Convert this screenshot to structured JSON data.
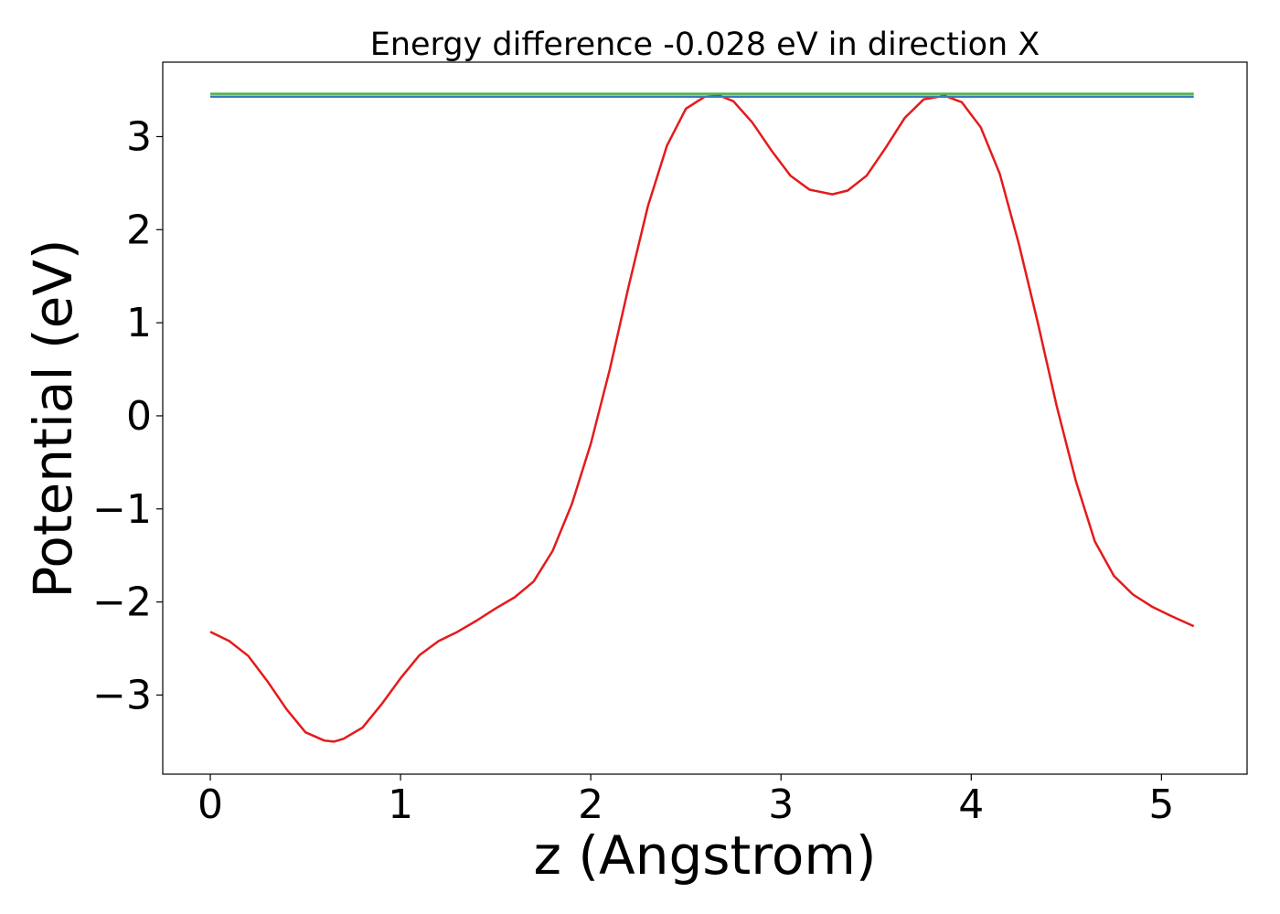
{
  "chart_data": {
    "type": "line",
    "title": "Energy difference -0.028 eV in direction X",
    "xlabel": "z (Angstrom)",
    "ylabel": "Potential (eV)",
    "xlim": [
      -0.25,
      5.45
    ],
    "ylim": [
      -3.85,
      3.8
    ],
    "x_ticks": [
      0,
      1,
      2,
      3,
      4,
      5
    ],
    "y_ticks": [
      -3,
      -2,
      -1,
      0,
      1,
      2,
      3
    ],
    "x_tick_labels": [
      "0",
      "1",
      "2",
      "3",
      "4",
      "5"
    ],
    "y_tick_labels": [
      "−3",
      "−2",
      "−1",
      "0",
      "1",
      "2",
      "3"
    ],
    "grid": false,
    "legend": null,
    "series": [
      {
        "color": "#e41a1c",
        "x": [
          0.0,
          0.1,
          0.2,
          0.3,
          0.4,
          0.5,
          0.6,
          0.65,
          0.7,
          0.8,
          0.9,
          1.0,
          1.1,
          1.2,
          1.3,
          1.4,
          1.5,
          1.6,
          1.7,
          1.8,
          1.9,
          2.0,
          2.1,
          2.2,
          2.3,
          2.4,
          2.5,
          2.6,
          2.68,
          2.75,
          2.85,
          2.95,
          3.05,
          3.15,
          3.27,
          3.35,
          3.45,
          3.55,
          3.65,
          3.75,
          3.86,
          3.95,
          4.05,
          4.15,
          4.25,
          4.35,
          4.45,
          4.55,
          4.65,
          4.75,
          4.85,
          4.95,
          5.05,
          5.17
        ],
        "y": [
          -2.32,
          -2.42,
          -2.58,
          -2.85,
          -3.15,
          -3.4,
          -3.49,
          -3.5,
          -3.47,
          -3.35,
          -3.1,
          -2.82,
          -2.57,
          -2.42,
          -2.32,
          -2.2,
          -2.07,
          -1.95,
          -1.78,
          -1.45,
          -0.95,
          -0.3,
          0.5,
          1.4,
          2.25,
          2.9,
          3.3,
          3.43,
          3.44,
          3.38,
          3.15,
          2.85,
          2.58,
          2.43,
          2.38,
          2.42,
          2.58,
          2.88,
          3.2,
          3.4,
          3.44,
          3.37,
          3.1,
          2.6,
          1.85,
          1.0,
          0.1,
          -0.7,
          -1.35,
          -1.72,
          -1.92,
          -2.05,
          -2.15,
          -2.26
        ]
      },
      {
        "color": "#4daf4a",
        "x": [
          0.0,
          5.17
        ],
        "y": [
          3.46,
          3.46
        ]
      },
      {
        "color": "#377eb8",
        "x": [
          0.0,
          5.17
        ],
        "y": [
          3.43,
          3.43
        ]
      }
    ]
  }
}
